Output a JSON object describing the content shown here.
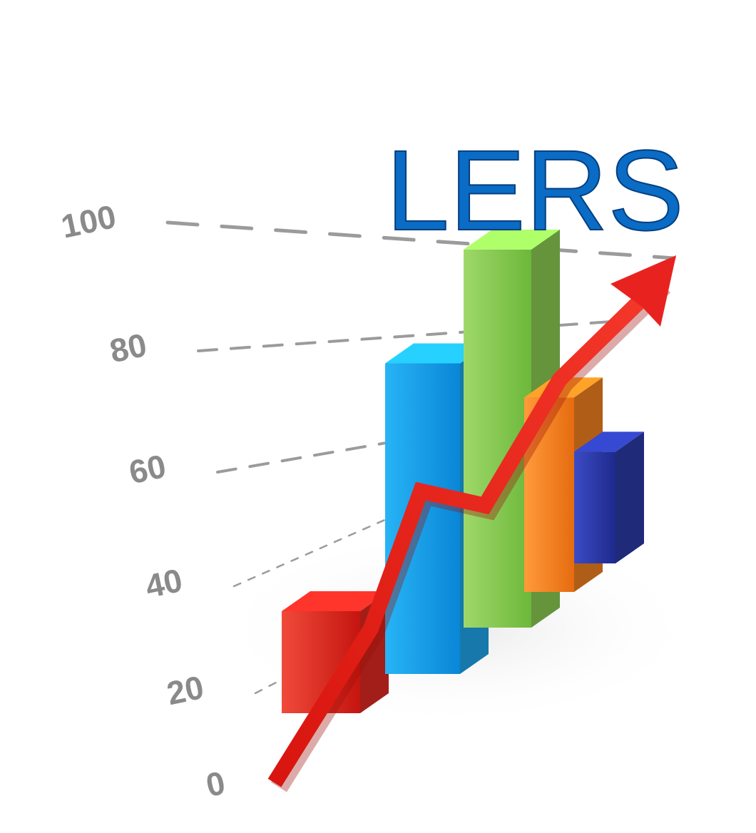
{
  "title": "LERS",
  "colors": {
    "title": "#0a6cc4",
    "tick": "#8a8a8a",
    "gridline": "#8a8a8a",
    "trend_arrow": "#e8231f"
  },
  "chart_data": {
    "type": "bar",
    "style": "3d-perspective",
    "title": "LERS",
    "xlabel": "",
    "ylabel": "",
    "ylim": [
      0,
      100
    ],
    "y_ticks": [
      0,
      20,
      40,
      60,
      80,
      100
    ],
    "grid": true,
    "legend": "none",
    "categories": [
      "",
      "",
      "",
      "",
      ""
    ],
    "series": [
      {
        "values": [
          22,
          67,
          93,
          62,
          54
        ],
        "colors": [
          "#e22a22",
          "#1ea7ee",
          "#8ccd55",
          "#f58220",
          "#2b3aa8"
        ]
      }
    ],
    "trend_line": {
      "type": "arrow",
      "color": "#e8231f",
      "values": [
        0,
        27,
        50,
        45,
        64,
        100
      ]
    }
  }
}
